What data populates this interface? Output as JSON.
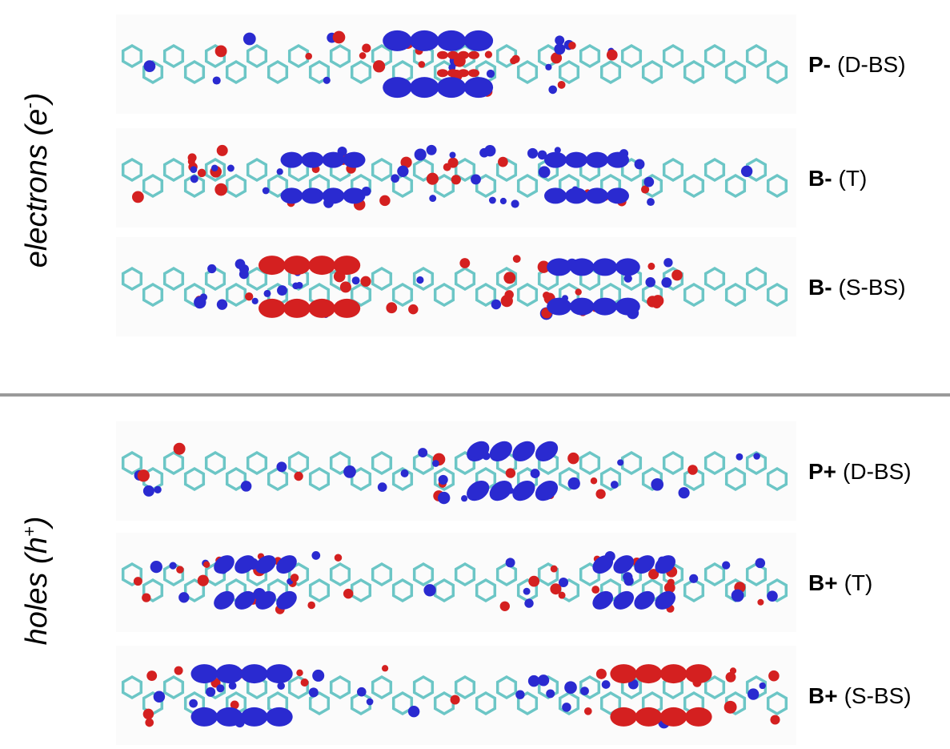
{
  "groups": [
    {
      "label": {
        "text": "electrons (e",
        "sup": "-",
        "end": ")"
      },
      "rows": [
        {
          "name": "P-",
          "state": "(D-BS)"
        },
        {
          "name": "B-",
          "state": "(T)"
        },
        {
          "name": "B-",
          "state": "(S-BS)"
        }
      ]
    },
    {
      "label": {
        "text": "holes (h",
        "sup": "+",
        "end": ")"
      },
      "rows": [
        {
          "name": "P+",
          "state": "(D-BS)"
        },
        {
          "name": "B+",
          "state": "(T)"
        },
        {
          "name": "B+",
          "state": "(S-BS)"
        }
      ]
    }
  ]
}
